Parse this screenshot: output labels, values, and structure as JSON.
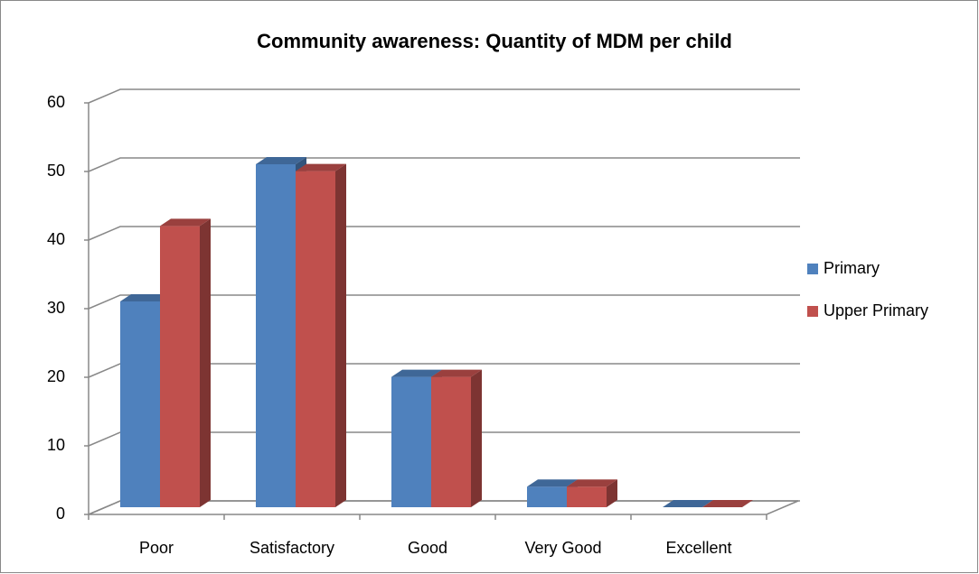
{
  "chart_data": {
    "type": "bar3d",
    "title": "Community awareness: Quantity of MDM per child",
    "categories": [
      "Poor",
      "Satisfactory",
      "Good",
      "Very Good",
      "Excellent"
    ],
    "series": [
      {
        "name": "Primary",
        "color": "#4f81bd",
        "values": [
          30,
          50,
          19,
          3,
          0
        ]
      },
      {
        "name": "Upper Primary",
        "color": "#c0504d",
        "values": [
          41,
          49,
          19,
          3,
          0
        ]
      }
    ],
    "ylim": [
      0,
      60
    ],
    "yticks": [
      0,
      10,
      20,
      30,
      40,
      50,
      60
    ],
    "grid": true,
    "legend": "right"
  }
}
